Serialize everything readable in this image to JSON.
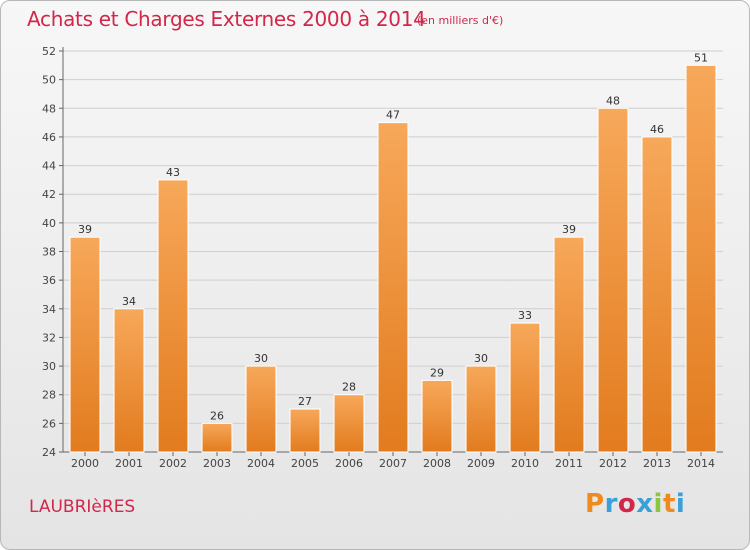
{
  "header": {
    "title": "Achats et Charges Externes 2000 à 2014",
    "subtitle": "(en milliers d'€)"
  },
  "footer": {
    "commune": "LAUBRIèRES",
    "logo_letters": [
      "P",
      "r",
      "o",
      "x",
      "i",
      "t",
      "i"
    ],
    "logo_colors": [
      "#f08a1c",
      "#3aa0d8",
      "#d2264a",
      "#3aa0d8",
      "#8cc63e",
      "#f08a1c",
      "#3aa0d8"
    ]
  },
  "colors": {
    "bar_light": "#f7a85a",
    "bar_dark": "#e27b1e",
    "grid": "#cfcfcf",
    "axis": "#666666",
    "title": "#d2264a"
  },
  "chart_data": {
    "type": "bar",
    "categories": [
      "2000",
      "2001",
      "2002",
      "2003",
      "2004",
      "2005",
      "2006",
      "2007",
      "2008",
      "2009",
      "2010",
      "2011",
      "2012",
      "2013",
      "2014"
    ],
    "values": [
      39,
      34,
      43,
      26,
      30,
      27,
      28,
      47,
      29,
      30,
      33,
      39,
      48,
      46,
      51
    ],
    "title": "Achats et Charges Externes 2000 à 2014",
    "ylim": [
      24,
      52
    ],
    "yticks": [
      24,
      26,
      28,
      30,
      32,
      34,
      36,
      38,
      40,
      42,
      44,
      46,
      48,
      50,
      52
    ],
    "grid": true
  }
}
